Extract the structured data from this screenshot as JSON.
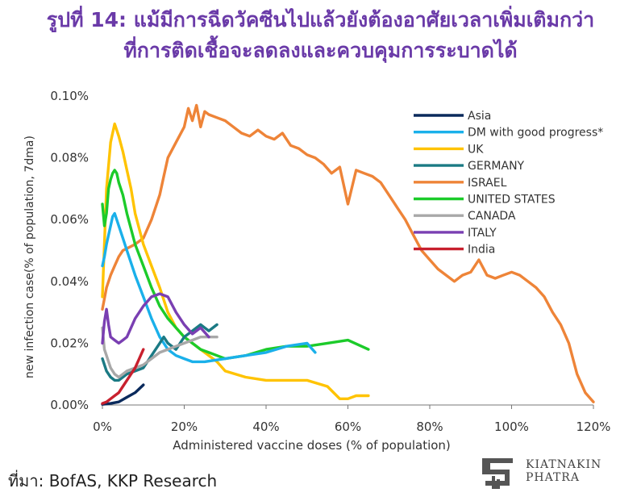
{
  "title": {
    "line1": "รูปที่ 14:   แม้มีการฉีดวัคซีนไปแล้วยังต้องอาศัยเวลาเพิ่มเติมกว่า",
    "line2": "ที่การติดเชื้อจะลดลงและควบคุมการระบาดได้"
  },
  "source": "ที่มา: BofAS, KKP Research",
  "logo": {
    "line1": "KIATNAKIN",
    "line2": "PHATRA"
  },
  "chart_data": {
    "type": "line",
    "xlabel": "Administered vaccine doses (% of population)",
    "ylabel": "new infection case(% of population, 7dma)",
    "xlim": [
      0,
      120
    ],
    "ylim": [
      0,
      0.1
    ],
    "xticks": [
      0,
      20,
      40,
      60,
      80,
      100,
      120
    ],
    "xtick_labels": [
      "0%",
      "20%",
      "40%",
      "60%",
      "80%",
      "100%",
      "120%"
    ],
    "yticks": [
      0,
      0.02,
      0.04,
      0.06,
      0.08,
      0.1
    ],
    "ytick_labels": [
      "0.00%",
      "0.02%",
      "0.04%",
      "0.06%",
      "0.08%",
      "0.10%"
    ],
    "grid": false,
    "legend_position": "top-right",
    "series": [
      {
        "name": "Asia",
        "color": "#0a2a5c",
        "x": [
          0,
          2,
          4,
          6,
          8,
          10
        ],
        "y": [
          0.0002,
          0.0005,
          0.001,
          0.0025,
          0.004,
          0.0065
        ]
      },
      {
        "name": "DM with good progress*",
        "color": "#1ab0ea",
        "x": [
          0,
          0.5,
          1,
          1.5,
          2,
          2.5,
          3,
          4,
          5,
          6,
          8,
          10,
          12,
          14,
          16,
          18,
          20,
          22,
          25,
          30,
          35,
          40,
          45,
          50,
          52
        ],
        "y": [
          0.045,
          0.048,
          0.052,
          0.055,
          0.058,
          0.061,
          0.062,
          0.058,
          0.054,
          0.05,
          0.042,
          0.035,
          0.028,
          0.022,
          0.018,
          0.016,
          0.015,
          0.014,
          0.014,
          0.015,
          0.016,
          0.017,
          0.019,
          0.02,
          0.017
        ]
      },
      {
        "name": "UK",
        "color": "#ffc300",
        "x": [
          0,
          1,
          2,
          3,
          4,
          5,
          6,
          7,
          8,
          10,
          12,
          14,
          16,
          18,
          20,
          22,
          24,
          26,
          28,
          30,
          35,
          40,
          45,
          50,
          55,
          58,
          60,
          62,
          65
        ],
        "y": [
          0.035,
          0.07,
          0.085,
          0.091,
          0.087,
          0.082,
          0.076,
          0.07,
          0.062,
          0.052,
          0.045,
          0.038,
          0.03,
          0.025,
          0.022,
          0.02,
          0.018,
          0.016,
          0.014,
          0.011,
          0.009,
          0.008,
          0.008,
          0.008,
          0.006,
          0.002,
          0.002,
          0.003,
          0.003
        ]
      },
      {
        "name": "GERMANY",
        "color": "#1b7a84",
        "x": [
          0,
          1,
          2,
          3,
          4,
          5,
          6,
          8,
          10,
          12,
          14,
          15,
          16,
          18,
          20,
          22,
          24,
          26,
          28
        ],
        "y": [
          0.015,
          0.011,
          0.009,
          0.008,
          0.008,
          0.009,
          0.01,
          0.011,
          0.012,
          0.016,
          0.02,
          0.022,
          0.02,
          0.018,
          0.022,
          0.024,
          0.026,
          0.024,
          0.026
        ]
      },
      {
        "name": "ISRAEL",
        "color": "#ee8438",
        "x": [
          0,
          1,
          2,
          3,
          4,
          5,
          8,
          10,
          12,
          14,
          15,
          16,
          18,
          20,
          21,
          22,
          23,
          24,
          25,
          26,
          28,
          30,
          32,
          34,
          36,
          38,
          40,
          42,
          44,
          46,
          48,
          50,
          52,
          54,
          56,
          58,
          60,
          62,
          64,
          66,
          68,
          70,
          72,
          74,
          76,
          78,
          80,
          82,
          84,
          86,
          88,
          90,
          92,
          94,
          96,
          98,
          100,
          102,
          104,
          106,
          108,
          110,
          112,
          114,
          116,
          118,
          120
        ],
        "y": [
          0.031,
          0.038,
          0.042,
          0.045,
          0.048,
          0.05,
          0.052,
          0.054,
          0.06,
          0.068,
          0.074,
          0.08,
          0.085,
          0.09,
          0.096,
          0.092,
          0.097,
          0.09,
          0.095,
          0.094,
          0.093,
          0.092,
          0.09,
          0.088,
          0.087,
          0.089,
          0.087,
          0.086,
          0.088,
          0.084,
          0.083,
          0.081,
          0.08,
          0.078,
          0.075,
          0.077,
          0.065,
          0.076,
          0.075,
          0.074,
          0.072,
          0.068,
          0.064,
          0.06,
          0.055,
          0.05,
          0.047,
          0.044,
          0.042,
          0.04,
          0.042,
          0.043,
          0.047,
          0.042,
          0.041,
          0.042,
          0.043,
          0.042,
          0.04,
          0.038,
          0.035,
          0.03,
          0.026,
          0.02,
          0.01,
          0.004,
          0.001
        ]
      },
      {
        "name": "UNITED STATES",
        "color": "#1ccb2a",
        "x": [
          0,
          0.5,
          1,
          1.5,
          2,
          2.5,
          3,
          3.5,
          4,
          5,
          6,
          8,
          10,
          12,
          14,
          16,
          18,
          20,
          22,
          24,
          26,
          28,
          30,
          35,
          40,
          45,
          50,
          55,
          60,
          65
        ],
        "y": [
          0.065,
          0.058,
          0.062,
          0.07,
          0.073,
          0.075,
          0.076,
          0.075,
          0.072,
          0.068,
          0.062,
          0.052,
          0.045,
          0.038,
          0.032,
          0.028,
          0.025,
          0.022,
          0.02,
          0.018,
          0.017,
          0.016,
          0.015,
          0.016,
          0.018,
          0.019,
          0.019,
          0.02,
          0.021,
          0.018
        ]
      },
      {
        "name": "CANADA",
        "color": "#a8a8a8",
        "x": [
          0,
          0.5,
          1,
          1.5,
          2,
          3,
          4,
          5,
          6,
          8,
          10,
          12,
          14,
          16,
          18,
          20,
          22,
          24,
          26,
          28
        ],
        "y": [
          0.025,
          0.018,
          0.016,
          0.014,
          0.012,
          0.01,
          0.009,
          0.01,
          0.011,
          0.012,
          0.013,
          0.015,
          0.017,
          0.018,
          0.019,
          0.02,
          0.021,
          0.022,
          0.022,
          0.022
        ]
      },
      {
        "name": "ITALY",
        "color": "#7a3fb2",
        "x": [
          0,
          0.5,
          1,
          1.5,
          2,
          3,
          4,
          5,
          6,
          8,
          10,
          12,
          14,
          16,
          18,
          20,
          22,
          24,
          26
        ],
        "y": [
          0.02,
          0.027,
          0.031,
          0.026,
          0.022,
          0.021,
          0.02,
          0.021,
          0.022,
          0.028,
          0.032,
          0.035,
          0.036,
          0.035,
          0.03,
          0.026,
          0.023,
          0.025,
          0.022
        ]
      },
      {
        "name": "India",
        "color": "#c8202e",
        "x": [
          0,
          1,
          2,
          3,
          4,
          5,
          6,
          7,
          8,
          9,
          10
        ],
        "y": [
          0.0005,
          0.001,
          0.002,
          0.003,
          0.004,
          0.006,
          0.008,
          0.01,
          0.012,
          0.015,
          0.018
        ]
      }
    ]
  }
}
